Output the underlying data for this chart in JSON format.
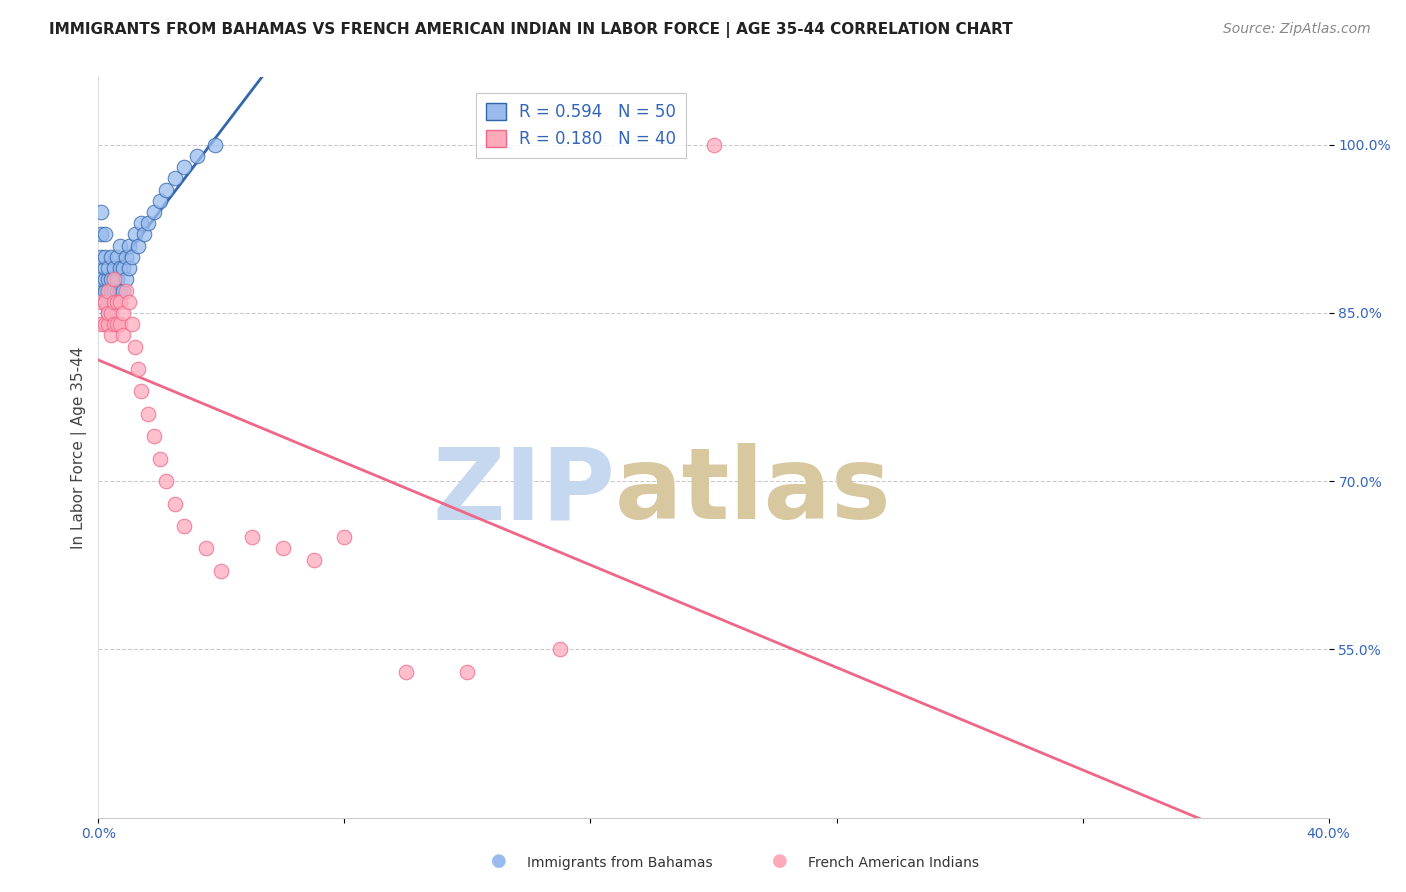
{
  "title": "IMMIGRANTS FROM BAHAMAS VS FRENCH AMERICAN INDIAN IN LABOR FORCE | AGE 35-44 CORRELATION CHART",
  "source": "Source: ZipAtlas.com",
  "ylabel": "In Labor Force | Age 35-44",
  "xlim": [
    0.0,
    0.4
  ],
  "ylim": [
    0.4,
    1.06
  ],
  "yticks": [
    0.55,
    0.7,
    0.85,
    1.0
  ],
  "yticklabels": [
    "55.0%",
    "70.0%",
    "85.0%",
    "100.0%"
  ],
  "blue_color": "#99bbee",
  "pink_color": "#ffaabb",
  "blue_line_color": "#3366aa",
  "pink_line_color": "#ee6688",
  "legend_R_blue": "0.594",
  "legend_N_blue": "50",
  "legend_R_pink": "0.180",
  "legend_N_pink": "40",
  "legend_label_blue": "Immigrants from Bahamas",
  "legend_label_pink": "French American Indians",
  "watermark_zip": "ZIP",
  "watermark_atlas": "atlas",
  "watermark_color_zip": "#c5d8f0",
  "watermark_color_atlas": "#d8c8a0",
  "blue_scatter_x": [
    0.001,
    0.001,
    0.001,
    0.001,
    0.001,
    0.002,
    0.002,
    0.002,
    0.002,
    0.002,
    0.002,
    0.003,
    0.003,
    0.003,
    0.003,
    0.003,
    0.004,
    0.004,
    0.004,
    0.004,
    0.004,
    0.005,
    0.005,
    0.005,
    0.005,
    0.006,
    0.006,
    0.006,
    0.007,
    0.007,
    0.007,
    0.008,
    0.008,
    0.009,
    0.009,
    0.01,
    0.01,
    0.011,
    0.012,
    0.013,
    0.014,
    0.015,
    0.016,
    0.018,
    0.02,
    0.022,
    0.025,
    0.028,
    0.032,
    0.038
  ],
  "blue_scatter_y": [
    0.87,
    0.88,
    0.9,
    0.92,
    0.94,
    0.86,
    0.87,
    0.88,
    0.89,
    0.9,
    0.92,
    0.85,
    0.86,
    0.87,
    0.88,
    0.89,
    0.84,
    0.86,
    0.87,
    0.88,
    0.9,
    0.86,
    0.87,
    0.88,
    0.89,
    0.87,
    0.88,
    0.9,
    0.87,
    0.89,
    0.91,
    0.87,
    0.89,
    0.88,
    0.9,
    0.89,
    0.91,
    0.9,
    0.92,
    0.91,
    0.93,
    0.92,
    0.93,
    0.94,
    0.95,
    0.96,
    0.97,
    0.98,
    0.99,
    1.0
  ],
  "pink_scatter_x": [
    0.001,
    0.001,
    0.002,
    0.002,
    0.003,
    0.003,
    0.003,
    0.004,
    0.004,
    0.005,
    0.005,
    0.005,
    0.006,
    0.006,
    0.007,
    0.007,
    0.008,
    0.008,
    0.009,
    0.01,
    0.011,
    0.012,
    0.013,
    0.014,
    0.016,
    0.018,
    0.02,
    0.022,
    0.025,
    0.028,
    0.035,
    0.04,
    0.05,
    0.06,
    0.07,
    0.08,
    0.1,
    0.12,
    0.15,
    0.2
  ],
  "pink_scatter_y": [
    0.84,
    0.86,
    0.84,
    0.86,
    0.84,
    0.85,
    0.87,
    0.83,
    0.85,
    0.84,
    0.86,
    0.88,
    0.84,
    0.86,
    0.84,
    0.86,
    0.83,
    0.85,
    0.87,
    0.86,
    0.84,
    0.82,
    0.8,
    0.78,
    0.76,
    0.74,
    0.72,
    0.7,
    0.68,
    0.66,
    0.64,
    0.62,
    0.65,
    0.64,
    0.63,
    0.65,
    0.53,
    0.53,
    0.55,
    1.0
  ],
  "title_fontsize": 11,
  "axis_label_fontsize": 11,
  "tick_fontsize": 10,
  "legend_fontsize": 12,
  "source_fontsize": 10
}
